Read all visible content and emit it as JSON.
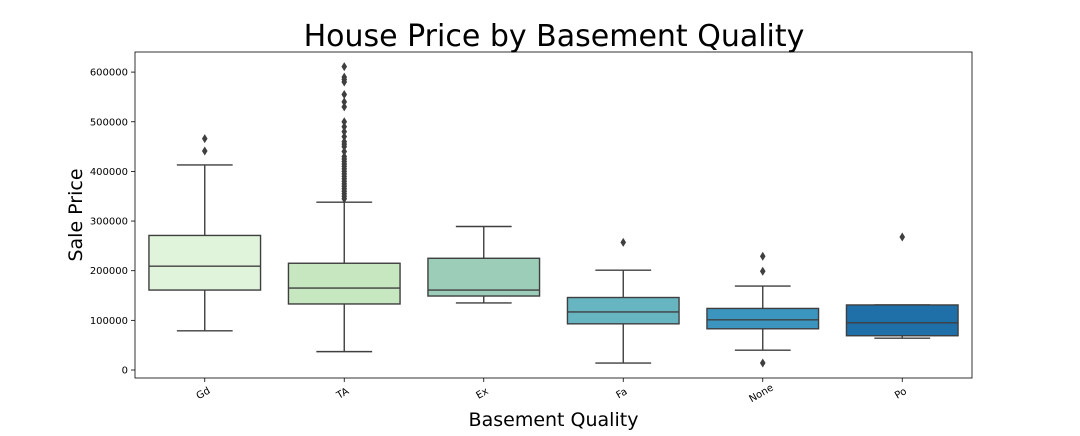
{
  "chart_data": {
    "type": "box",
    "title": "House Price by Basement Quality",
    "xlabel": "Basement Quality",
    "ylabel": "Sale Price",
    "ylim": [
      -15000,
      640000
    ],
    "yticks": [
      0,
      100000,
      200000,
      300000,
      400000,
      500000,
      600000
    ],
    "ytick_labels": [
      "0",
      "100000",
      "200000",
      "300000",
      "400000",
      "500000",
      "600000"
    ],
    "categories": [
      "Gd",
      "TA",
      "Ex",
      "Fa",
      "None",
      "Po"
    ],
    "boxes": [
      {
        "category": "Gd",
        "color": "#e0f3db",
        "whisker_low": 79000,
        "q1": 161000,
        "median": 209000,
        "q3": 271000,
        "whisker_high": 413000,
        "outliers": [
          441000,
          466000
        ]
      },
      {
        "category": "TA",
        "color": "#c6e7c0",
        "whisker_low": 37000,
        "q1": 133000,
        "median": 165000,
        "q3": 215000,
        "whisker_high": 338000,
        "outliers": [
          345000,
          350000,
          355000,
          360000,
          365000,
          370000,
          375000,
          380000,
          385000,
          390000,
          395000,
          400000,
          405000,
          410000,
          415000,
          420000,
          425000,
          430000,
          440000,
          450000,
          455000,
          460000,
          470000,
          480000,
          490000,
          500000,
          530000,
          540000,
          555000,
          580000,
          585000,
          590000,
          611000
        ]
      },
      {
        "category": "Ex",
        "color": "#9ccdb8",
        "whisker_low": 135000,
        "q1": 149000,
        "median": 161000,
        "q3": 225000,
        "whisker_high": 289000,
        "outliers": []
      },
      {
        "category": "Fa",
        "color": "#68b5c2",
        "whisker_low": 14000,
        "q1": 93000,
        "median": 117000,
        "q3": 146000,
        "whisker_high": 201000,
        "outliers": [
          257000
        ]
      },
      {
        "category": "None",
        "color": "#3c95bf",
        "whisker_low": 40000,
        "q1": 83000,
        "median": 101000,
        "q3": 124000,
        "whisker_high": 169000,
        "outliers": [
          14000,
          199000,
          229000
        ]
      },
      {
        "category": "Po",
        "color": "#1f6fa9",
        "whisker_low": 64000,
        "q1": 69000,
        "median": 95000,
        "q3": 131000,
        "whisker_high": 131000,
        "outliers": [
          268000
        ]
      }
    ],
    "grid": false,
    "legend": "none"
  }
}
